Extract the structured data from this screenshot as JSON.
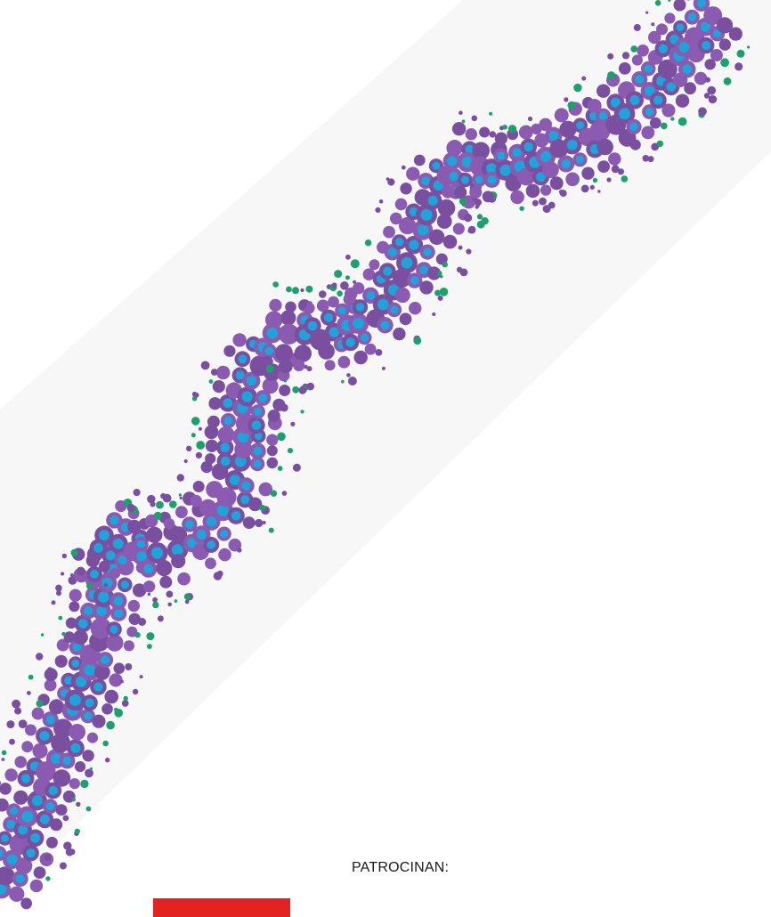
{
  "artwork": {
    "subject": "wavy-band-of-dots",
    "colors": {
      "band_background": "#f7f7f8",
      "dot_purple": "#7a4fa0",
      "dot_purple_light": "#8a5bb0",
      "dot_cyan": "#1fa3d9",
      "dot_green": "#1f9e6e"
    }
  },
  "footer": {
    "sponsors_label": "PATROCINAN:",
    "sponsor_bar_color": "#e32222"
  }
}
